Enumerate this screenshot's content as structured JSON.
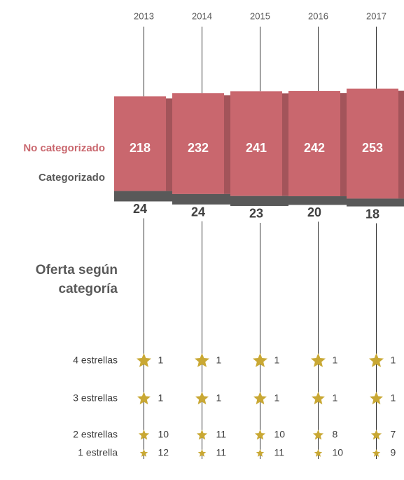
{
  "chart_data": {
    "type": "bar",
    "categories": [
      "2013",
      "2014",
      "2015",
      "2016",
      "2017"
    ],
    "series": [
      {
        "name": "No categorizado",
        "color": "#c9676e",
        "values": [
          218,
          232,
          241,
          242,
          253
        ]
      },
      {
        "name": "Categorizado",
        "color": "#595959",
        "values": [
          24,
          24,
          23,
          20,
          18
        ]
      }
    ],
    "section_title": "Oferta según categoría",
    "star_color": "#c9a834",
    "star_rows": [
      {
        "label": "4 estrellas",
        "values": [
          1,
          1,
          1,
          1,
          1
        ]
      },
      {
        "label": "3 estrellas",
        "values": [
          1,
          1,
          1,
          1,
          1
        ]
      },
      {
        "label": "2 estrellas",
        "values": [
          10,
          11,
          10,
          8,
          7
        ]
      },
      {
        "label": "1 estrella",
        "values": [
          12,
          11,
          11,
          10,
          9
        ]
      }
    ]
  }
}
